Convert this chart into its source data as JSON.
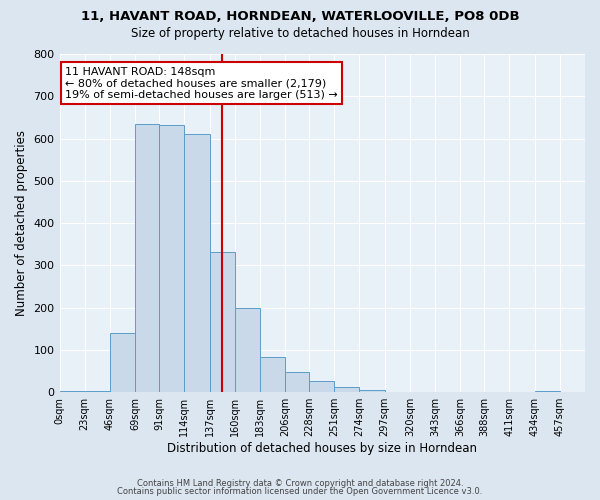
{
  "title": "11, HAVANT ROAD, HORNDEAN, WATERLOOVILLE, PO8 0DB",
  "subtitle": "Size of property relative to detached houses in Horndean",
  "xlabel": "Distribution of detached houses by size in Horndean",
  "ylabel": "Number of detached properties",
  "bin_labels": [
    "0sqm",
    "23sqm",
    "46sqm",
    "69sqm",
    "91sqm",
    "114sqm",
    "137sqm",
    "160sqm",
    "183sqm",
    "206sqm",
    "228sqm",
    "251sqm",
    "274sqm",
    "297sqm",
    "320sqm",
    "343sqm",
    "366sqm",
    "388sqm",
    "411sqm",
    "434sqm",
    "457sqm"
  ],
  "bin_edges": [
    0,
    23,
    46,
    69,
    91,
    114,
    137,
    160,
    183,
    206,
    228,
    251,
    274,
    297,
    320,
    343,
    366,
    388,
    411,
    434,
    457,
    480
  ],
  "bar_values": [
    3,
    3,
    140,
    635,
    632,
    610,
    332,
    200,
    84,
    47,
    27,
    12,
    5,
    0,
    0,
    0,
    0,
    0,
    0,
    3,
    0
  ],
  "bar_color": "#c9d9ea",
  "bar_edge_color": "#5a9ec8",
  "vline_x": 148,
  "vline_color": "#cc0000",
  "annotation_line1": "11 HAVANT ROAD: 148sqm",
  "annotation_line2": "← 80% of detached houses are smaller (2,179)",
  "annotation_line3": "19% of semi-detached houses are larger (513) →",
  "annotation_box_color": "#ffffff",
  "annotation_box_edge": "#cc0000",
  "ylim": [
    0,
    800
  ],
  "yticks": [
    0,
    100,
    200,
    300,
    400,
    500,
    600,
    700,
    800
  ],
  "footer_line1": "Contains HM Land Registry data © Crown copyright and database right 2024.",
  "footer_line2": "Contains public sector information licensed under the Open Government Licence v3.0.",
  "bg_color": "#dce6f0",
  "plot_bg_color": "#e8f0f8"
}
